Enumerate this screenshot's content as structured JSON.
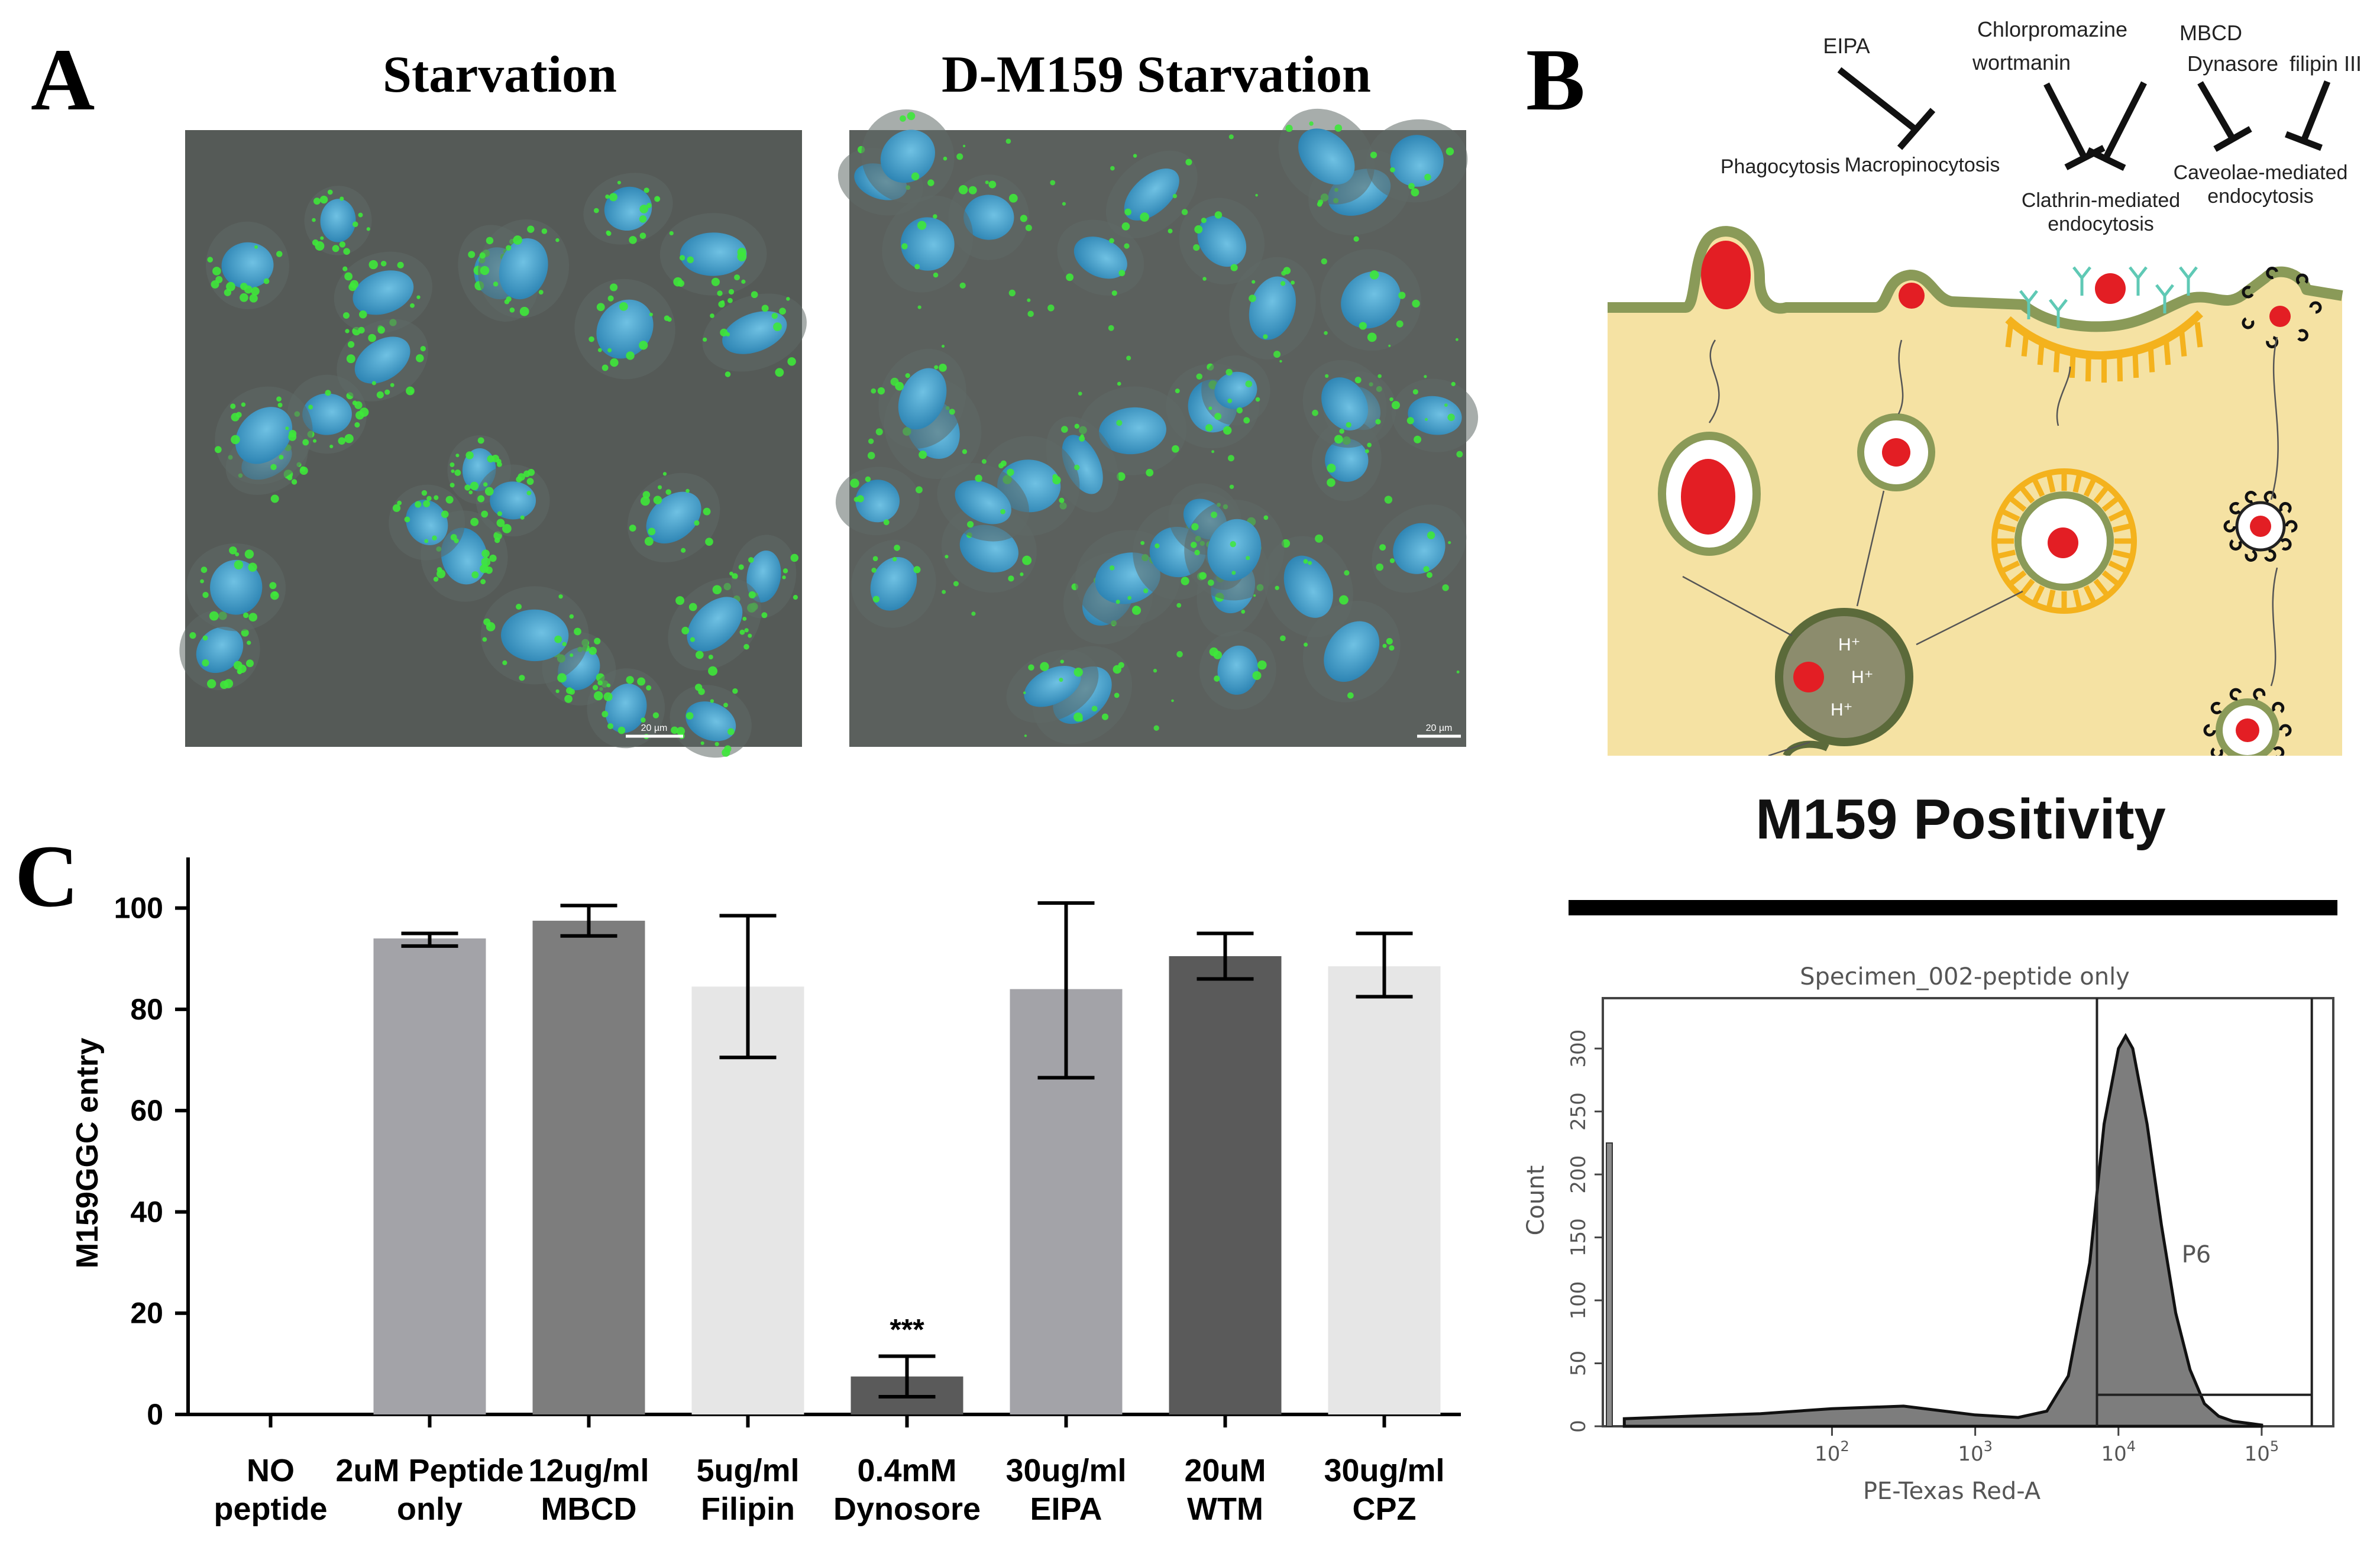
{
  "panel_a": {
    "letter": "A",
    "left_title": "Starvation",
    "right_title": "D-M159 Starvation",
    "scale_label": "20 µm"
  },
  "panel_b": {
    "letter": "B",
    "inhibitors": {
      "eipa": "EIPA",
      "chlorpromazine": "Chlorpromazine",
      "wortmannin": "wortmanin",
      "mbcd": "MBCD",
      "dynasore": "Dynasore",
      "filipin": "filipin III"
    },
    "pathways": {
      "phagocytosis": "Phagocytosis",
      "macropinocytosis": "Macropinocytosis",
      "clathrin_1": "Clathrin-mediated",
      "clathrin_2": "endocytosis",
      "caveolae_1": "Caveolae-mediated",
      "caveolae_2": "endocytosis"
    },
    "proton": "H⁺"
  },
  "panel_c": {
    "letter": "C",
    "significance": "***",
    "colors": {
      "light_gray": "#e6e6e6",
      "mid_gray": "#a3a3a8",
      "dark_gray": "#7d7d7d",
      "darker_gray": "#5a5a5a"
    }
  },
  "chart_data": [
    {
      "type": "bar",
      "title": "",
      "ylabel": "M159GGC entry",
      "xlabel": "",
      "ylim": [
        0,
        110
      ],
      "yticks": [
        0,
        20,
        40,
        60,
        80,
        100
      ],
      "categories": [
        [
          "NO",
          "peptide"
        ],
        [
          "2uM Peptide",
          "only"
        ],
        [
          "12ug/ml",
          "MBCD"
        ],
        [
          "5ug/ml",
          "Filipin"
        ],
        [
          "0.4mM",
          "Dynosore"
        ],
        [
          "30ug/ml",
          "EIPA"
        ],
        [
          "20uM",
          "WTM"
        ],
        [
          "30ug/ml",
          "CPZ"
        ]
      ],
      "values": [
        0,
        94,
        97.5,
        84.5,
        7.5,
        84,
        90.5,
        88.5
      ],
      "error_low": [
        0,
        92.5,
        94.5,
        70.5,
        3.5,
        66.5,
        86,
        82.5
      ],
      "error_high": [
        0,
        95,
        100.5,
        98.5,
        11.5,
        101,
        95,
        95
      ],
      "bar_colors": [
        "#ffffff",
        "#a3a3a8",
        "#7d7d7d",
        "#e6e6e6",
        "#5a5a5a",
        "#a3a3a8",
        "#5a5a5a",
        "#e6e6e6"
      ]
    },
    {
      "type": "area",
      "title": "M159 Positivity",
      "subtitle": "Specimen_002-peptide only",
      "xlabel": "PE-Texas Red-A",
      "ylabel": "Count",
      "x_scale": "log",
      "xlim": [
        0.4,
        5.5
      ],
      "ylim": [
        0,
        340
      ],
      "yticks": [
        0,
        50,
        100,
        150,
        200,
        250,
        300
      ],
      "xtick_exponents": [
        2,
        3,
        4,
        5
      ],
      "gate_label": "P6",
      "gate_range_log10": [
        3.85,
        5.35
      ],
      "gate_level": 25,
      "histogram_log10x": [
        0.55,
        1.0,
        1.5,
        2.0,
        2.5,
        3.0,
        3.3,
        3.5,
        3.65,
        3.8,
        3.9,
        4.0,
        4.05,
        4.1,
        4.2,
        4.3,
        4.4,
        4.5,
        4.6,
        4.7,
        4.8,
        5.0
      ],
      "histogram_counts": [
        6,
        8,
        10,
        14,
        16,
        9,
        7,
        12,
        40,
        130,
        240,
        300,
        310,
        300,
        240,
        160,
        90,
        45,
        18,
        8,
        4,
        1
      ]
    }
  ]
}
